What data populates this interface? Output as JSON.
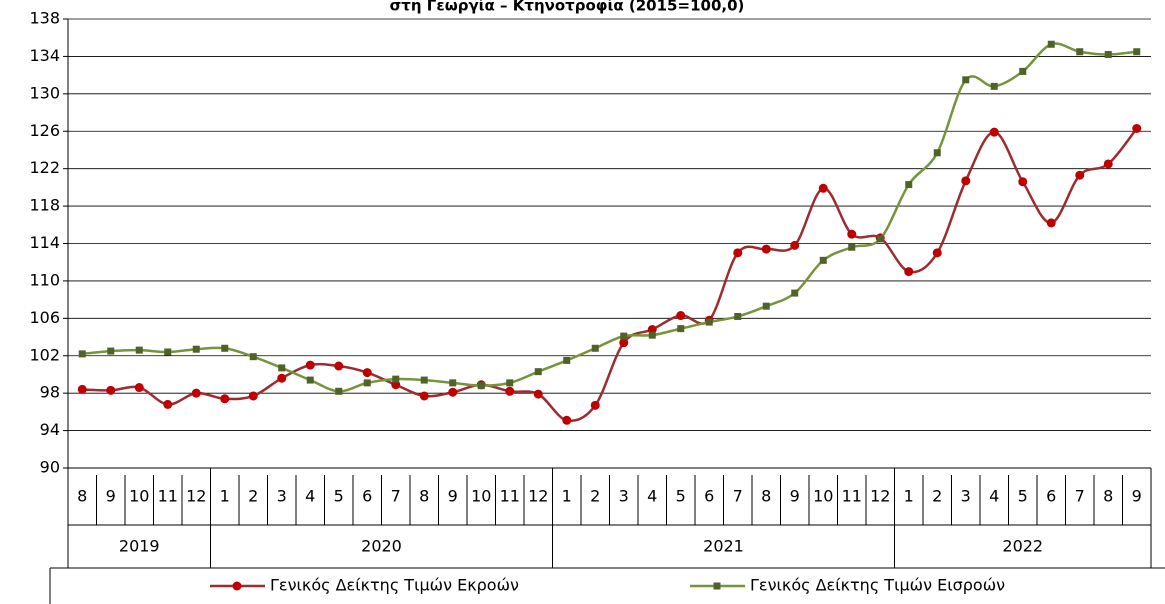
{
  "chart_data": {
    "type": "line",
    "title": "στη Γεωργία – Κτηνοτροφία (2015=100,0)",
    "groups": [
      {
        "label": "2019",
        "categories": [
          "8",
          "9",
          "10",
          "11",
          "12"
        ]
      },
      {
        "label": "2020",
        "categories": [
          "1",
          "2",
          "3",
          "4",
          "5",
          "6",
          "7",
          "8",
          "9",
          "10",
          "11",
          "12"
        ]
      },
      {
        "label": "2021",
        "categories": [
          "1",
          "2",
          "3",
          "4",
          "5",
          "6",
          "7",
          "8",
          "9",
          "10",
          "11",
          "12"
        ]
      },
      {
        "label": "2022",
        "categories": [
          "1",
          "2",
          "3",
          "4",
          "5",
          "6",
          "7",
          "8",
          "9"
        ]
      }
    ],
    "series": [
      {
        "name": "Γενικός Δείκτης Τιμών Εκροών",
        "color": "#9b2d30",
        "marker_color": "#c00000",
        "marker": "circle",
        "values": [
          98.4,
          98.3,
          98.6,
          96.8,
          98.0,
          97.4,
          97.7,
          99.6,
          101.0,
          100.9,
          100.2,
          98.9,
          97.7,
          98.1,
          98.9,
          98.2,
          97.9,
          95.1,
          96.7,
          103.4,
          104.8,
          106.3,
          105.8,
          113.0,
          113.4,
          113.8,
          119.9,
          115.0,
          114.6,
          111.0,
          113.0,
          120.7,
          125.9,
          120.6,
          116.2,
          121.3,
          122.5,
          126.3
        ]
      },
      {
        "name": "Γενικός Δείκτης Τιμών Εισροών",
        "color": "#77933c",
        "marker_color": "#4f6228",
        "marker": "square",
        "values": [
          102.2,
          102.5,
          102.6,
          102.4,
          102.7,
          102.8,
          101.9,
          100.7,
          99.4,
          98.2,
          99.1,
          99.5,
          99.4,
          99.1,
          98.8,
          99.1,
          100.3,
          101.5,
          102.8,
          104.1,
          104.2,
          104.9,
          105.6,
          106.2,
          107.3,
          108.7,
          112.2,
          113.6,
          114.5,
          120.3,
          123.7,
          131.5,
          130.8,
          132.4,
          135.3,
          134.5,
          134.2,
          134.5
        ]
      }
    ],
    "ylim": [
      90,
      138
    ],
    "yticks": [
      90,
      94,
      98,
      102,
      106,
      110,
      114,
      118,
      122,
      126,
      130,
      134,
      138
    ],
    "grid": true
  }
}
